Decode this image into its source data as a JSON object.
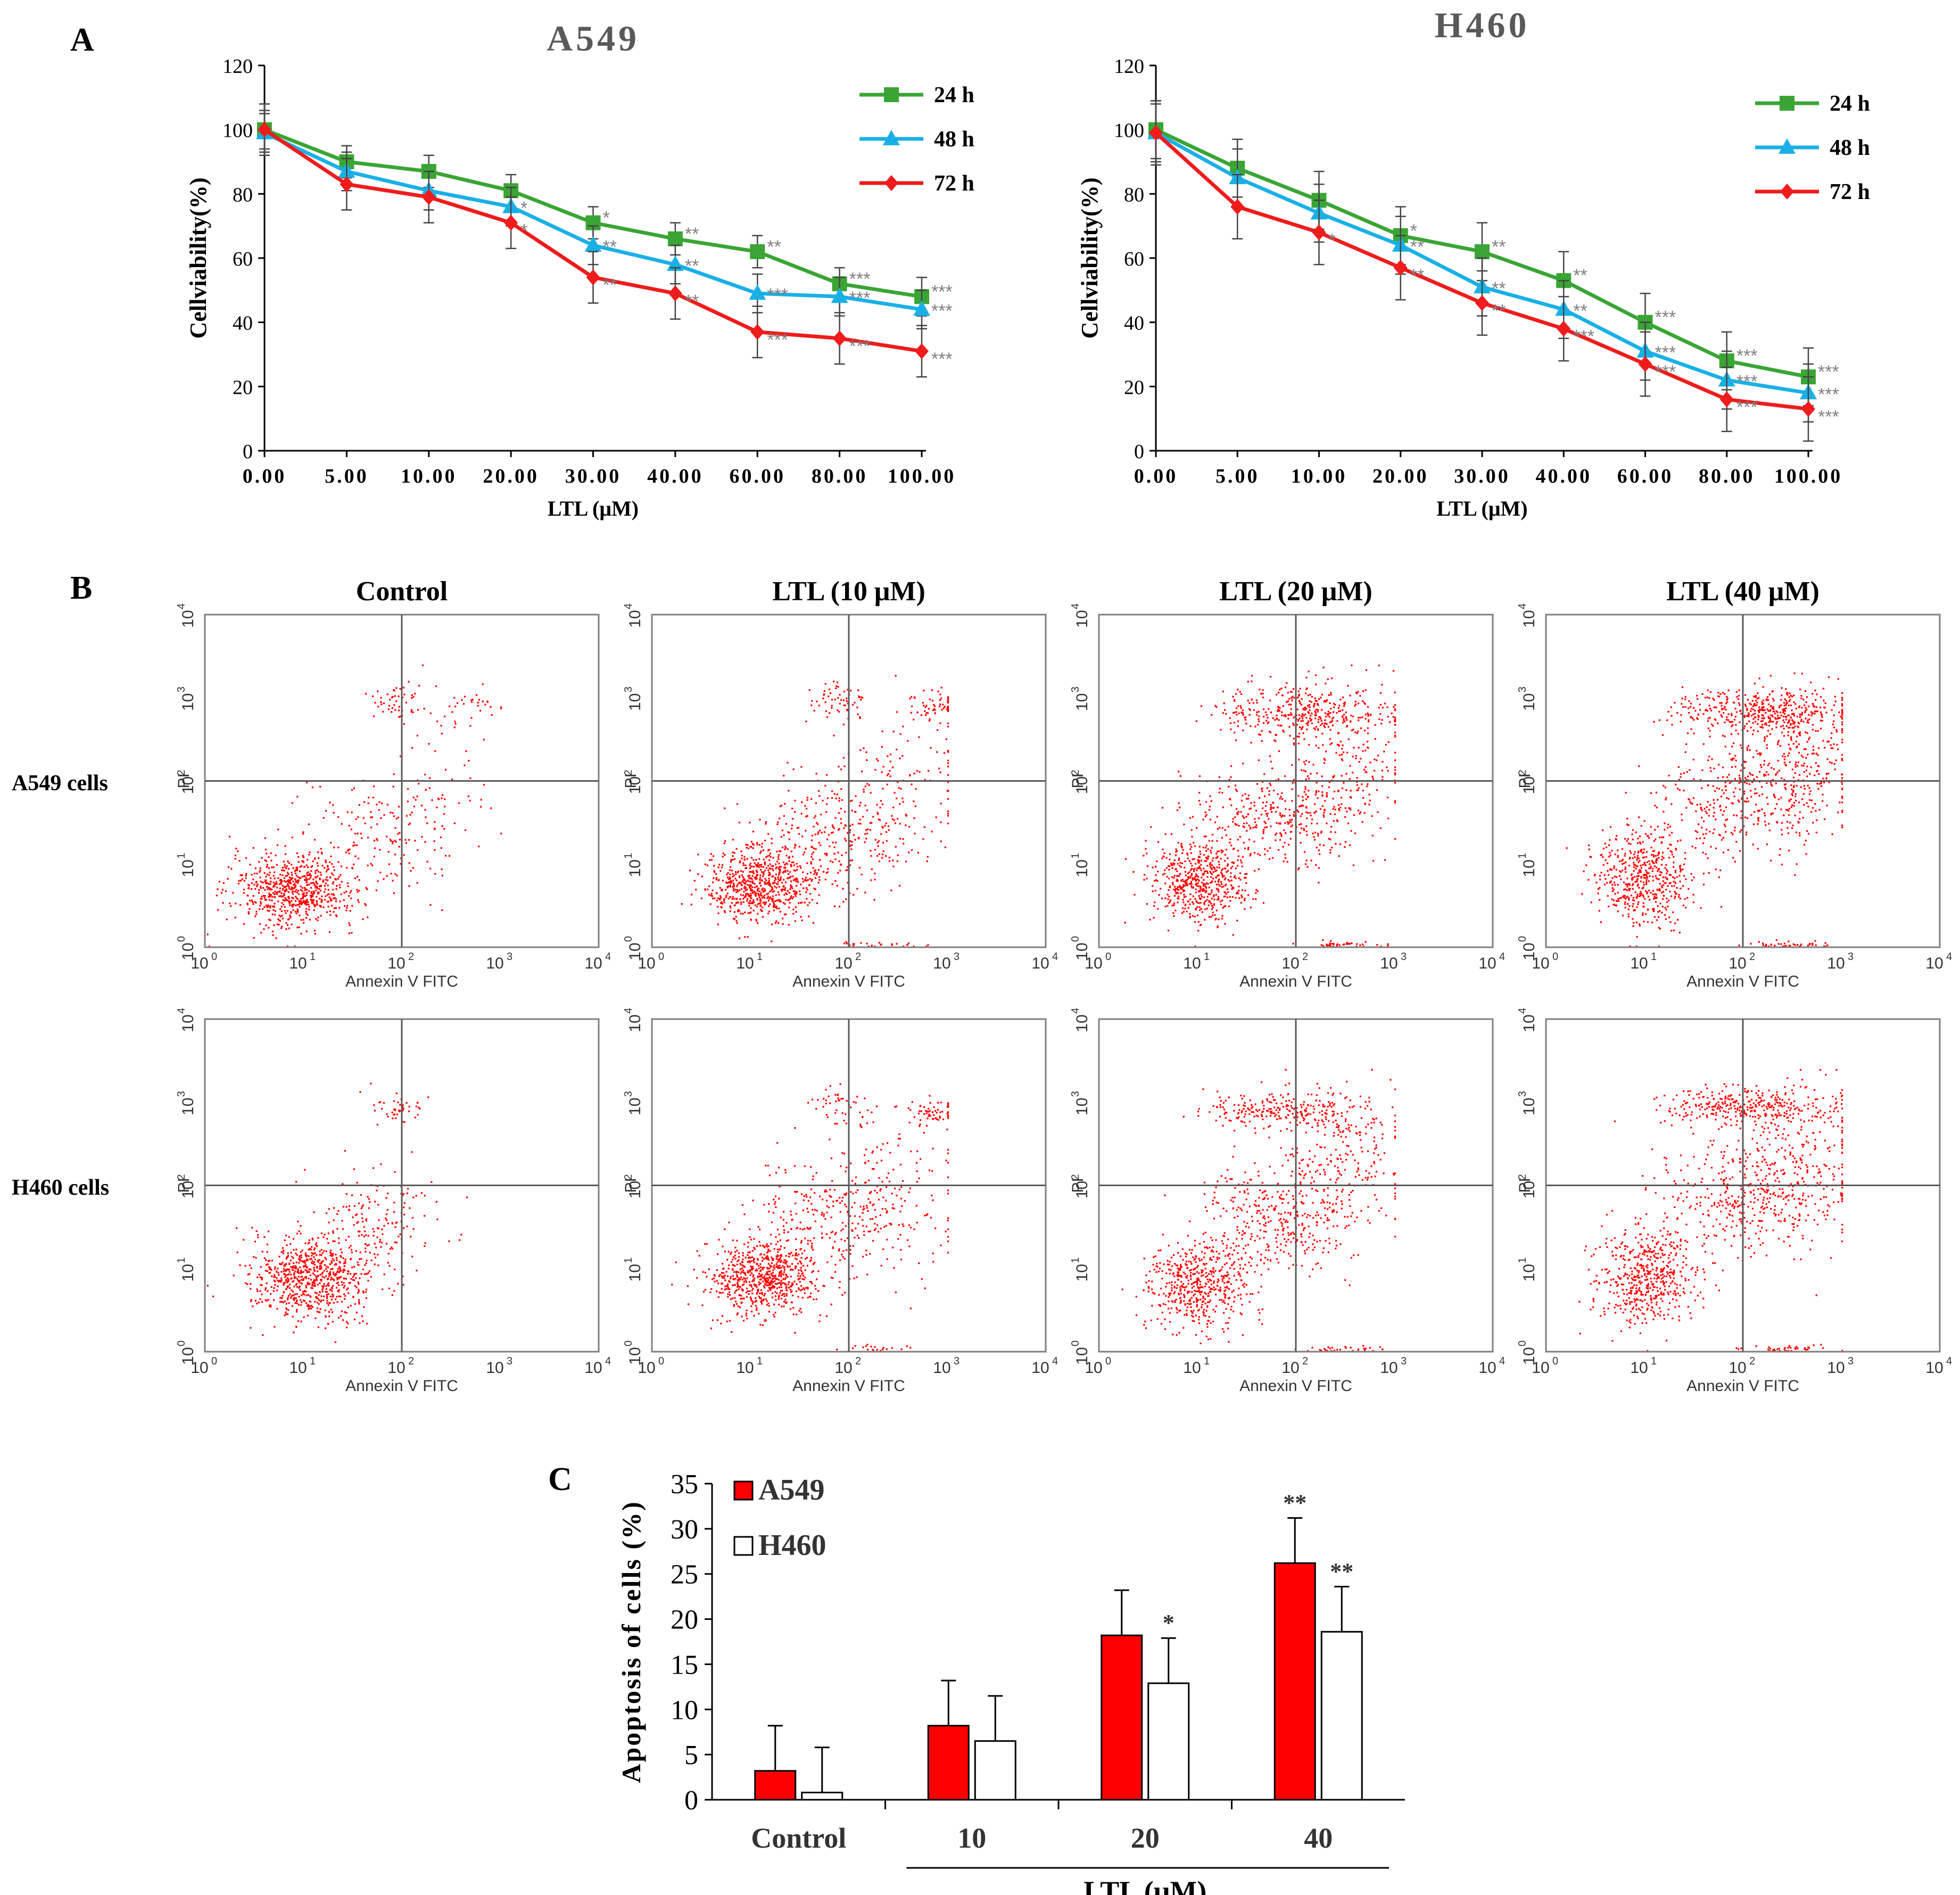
{
  "panel_labels": {
    "a": "A",
    "b": "B",
    "c": "C"
  },
  "colors": {
    "g24": "#3aa535",
    "g48": "#1ab0e6",
    "g72": "#ee1c1c",
    "red": "#ff0000",
    "axis": "#000000",
    "sig": "#7f7f7f"
  },
  "chart_data": [
    {
      "type": "line",
      "id": "A549_viability",
      "title": "A549",
      "xlabel": "LTL (μM)",
      "ylabel": "Cellviability(%)",
      "x": [
        "0.00",
        "5.00",
        "10.00",
        "20.00",
        "30.00",
        "40.00",
        "60.00",
        "80.00",
        "100.00"
      ],
      "ylim": [
        0,
        120
      ],
      "yticks": [
        "0",
        "20",
        "40",
        "60",
        "80",
        "100",
        "120"
      ],
      "series": [
        {
          "name": "24 h",
          "values": [
            100,
            90,
            87,
            81,
            71,
            66,
            62,
            52,
            48
          ],
          "errors": [
            6,
            5,
            5,
            5,
            5,
            5,
            5,
            5,
            6
          ],
          "marker": "square",
          "sig": [
            "",
            "",
            "",
            "",
            "*",
            "**",
            "**",
            "***",
            "***"
          ]
        },
        {
          "name": "48 h",
          "values": [
            99,
            87,
            81,
            76,
            64,
            58,
            49,
            48,
            44
          ],
          "errors": [
            6,
            6,
            6,
            6,
            6,
            6,
            6,
            6,
            6
          ],
          "marker": "triangle",
          "sig": [
            "",
            "",
            "",
            "*",
            "**",
            "**",
            "***",
            "***",
            "***"
          ]
        },
        {
          "name": "72 h",
          "values": [
            100,
            83,
            79,
            71,
            54,
            49,
            37,
            35,
            31
          ],
          "errors": [
            8,
            8,
            8,
            8,
            8,
            8,
            8,
            8,
            8
          ],
          "marker": "diamond",
          "sig": [
            "",
            "",
            "",
            "*",
            "**",
            "**",
            "***",
            "***",
            "***"
          ]
        }
      ]
    },
    {
      "type": "line",
      "id": "H460_viability",
      "title": "H460",
      "xlabel": "LTL (μM)",
      "ylabel": "Cellviability(%)",
      "x": [
        "0.00",
        "5.00",
        "10.00",
        "20.00",
        "30.00",
        "40.00",
        "60.00",
        "80.00",
        "100.00"
      ],
      "ylim": [
        0,
        120
      ],
      "yticks": [
        "0",
        "20",
        "40",
        "60",
        "80",
        "100",
        "120"
      ],
      "series": [
        {
          "name": "24 h",
          "values": [
            100,
            88,
            78,
            67,
            62,
            53,
            40,
            28,
            23
          ],
          "errors": [
            9,
            9,
            9,
            9,
            9,
            9,
            9,
            9,
            9
          ],
          "marker": "square",
          "sig": [
            "",
            "",
            "",
            "*",
            "**",
            "**",
            "***",
            "***",
            "***"
          ]
        },
        {
          "name": "48 h",
          "values": [
            99,
            85,
            74,
            64,
            51,
            44,
            31,
            22,
            18
          ],
          "errors": [
            9,
            9,
            9,
            9,
            9,
            9,
            9,
            9,
            9
          ],
          "marker": "triangle",
          "sig": [
            "",
            "",
            "",
            "**",
            "**",
            "**",
            "***",
            "***",
            "***"
          ]
        },
        {
          "name": "72 h",
          "values": [
            99,
            76,
            68,
            57,
            46,
            38,
            27,
            16,
            13
          ],
          "errors": [
            10,
            10,
            10,
            10,
            10,
            10,
            10,
            10,
            10
          ],
          "marker": "diamond",
          "sig": [
            "",
            "",
            "*",
            "**",
            "**",
            "***",
            "***",
            "***",
            "***"
          ]
        }
      ]
    },
    {
      "type": "scatter",
      "id": "flow_cytometry",
      "columns": [
        "Control",
        "LTL (10 μM)",
        "LTL (20 μM)",
        "LTL (40 μM)"
      ],
      "rows": [
        "A549 cells",
        "H460 cells"
      ],
      "xlabel": "Annexin V FITC",
      "ylabel": "PI",
      "axis_scale": "log",
      "axis_range": [
        1,
        10000
      ],
      "quadrant_gate": [
        100,
        100
      ],
      "populations": [
        [
          [
            [
              8,
              5,
              0.32,
              0.22,
              720
            ],
            [
              60,
              25,
              0.4,
              0.35,
              160
            ],
            [
              80,
              900,
              0.15,
              0.12,
              50
            ],
            [
              500,
              900,
              0.18,
              0.08,
              25
            ],
            [
              250,
              80,
              0.3,
              0.5,
              50
            ]
          ],
          [
            [
              13,
              6,
              0.28,
              0.22,
              720
            ],
            [
              70,
              25,
              0.35,
              0.35,
              240
            ],
            [
              80,
              900,
              0.15,
              0.12,
              60
            ],
            [
              700,
              800,
              0.15,
              0.08,
              60
            ],
            [
              300,
              80,
              0.35,
              0.5,
              140
            ],
            [
              200,
              1.1,
              0.25,
              0.02,
              25
            ]
          ],
          [
            [
              10,
              6,
              0.25,
              0.25,
              560
            ],
            [
              60,
              40,
              0.4,
              0.3,
              330
            ],
            [
              100,
              700,
              0.45,
              0.15,
              330
            ],
            [
              300,
              200,
              0.35,
              0.5,
              260
            ],
            [
              300,
              1.1,
              0.25,
              0.02,
              40
            ]
          ],
          [
            [
              10,
              7,
              0.25,
              0.3,
              520
            ],
            [
              80,
              60,
              0.4,
              0.35,
              300
            ],
            [
              150,
              700,
              0.45,
              0.12,
              360
            ],
            [
              350,
              200,
              0.3,
              0.45,
              330
            ],
            [
              300,
              1.1,
              0.25,
              0.02,
              40
            ]
          ]
        ],
        [
          [
            [
              12,
              8,
              0.3,
              0.25,
              760
            ],
            [
              50,
              40,
              0.35,
              0.3,
              150
            ],
            [
              80,
              900,
              0.15,
              0.12,
              45
            ]
          ],
          [
            [
              13,
              8,
              0.28,
              0.22,
              720
            ],
            [
              70,
              40,
              0.4,
              0.35,
              270
            ],
            [
              80,
              900,
              0.15,
              0.12,
              50
            ],
            [
              700,
              800,
              0.15,
              0.08,
              60
            ],
            [
              300,
              80,
              0.35,
              0.5,
              110
            ],
            [
              200,
              1.1,
              0.25,
              0.02,
              20
            ]
          ],
          [
            [
              10,
              6,
              0.25,
              0.25,
              520
            ],
            [
              60,
              40,
              0.4,
              0.35,
              350
            ],
            [
              80,
              800,
              0.4,
              0.12,
              260
            ],
            [
              300,
              200,
              0.35,
              0.5,
              230
            ],
            [
              300,
              1.1,
              0.25,
              0.02,
              30
            ]
          ],
          [
            [
              10,
              8,
              0.25,
              0.3,
              520
            ],
            [
              80,
              70,
              0.4,
              0.35,
              320
            ],
            [
              100,
              900,
              0.4,
              0.1,
              300
            ],
            [
              350,
              200,
              0.35,
              0.5,
              320
            ],
            [
              300,
              1.1,
              0.25,
              0.02,
              40
            ]
          ]
        ]
      ]
    },
    {
      "type": "bar",
      "id": "apoptosis",
      "ylabel": "Apoptosis of cells (%)",
      "ylim": [
        0,
        35
      ],
      "yticks": [
        "0",
        "5",
        "10",
        "15",
        "20",
        "25",
        "30",
        "35"
      ],
      "categories": [
        "Control",
        "10",
        "20",
        "40"
      ],
      "group_label": "LTL (μM)",
      "series": [
        {
          "name": "A549",
          "values": [
            3.2,
            8.2,
            18.2,
            26.2
          ],
          "errors": [
            5,
            5,
            5,
            5
          ],
          "sig": [
            "",
            "",
            "",
            ""
          ]
        },
        {
          "name": "H460",
          "values": [
            0.8,
            6.5,
            12.9,
            18.6
          ],
          "errors": [
            5,
            5,
            5,
            5
          ],
          "sig": [
            "",
            "",
            "*",
            "**"
          ]
        }
      ],
      "sig_A549_40": "**"
    }
  ]
}
